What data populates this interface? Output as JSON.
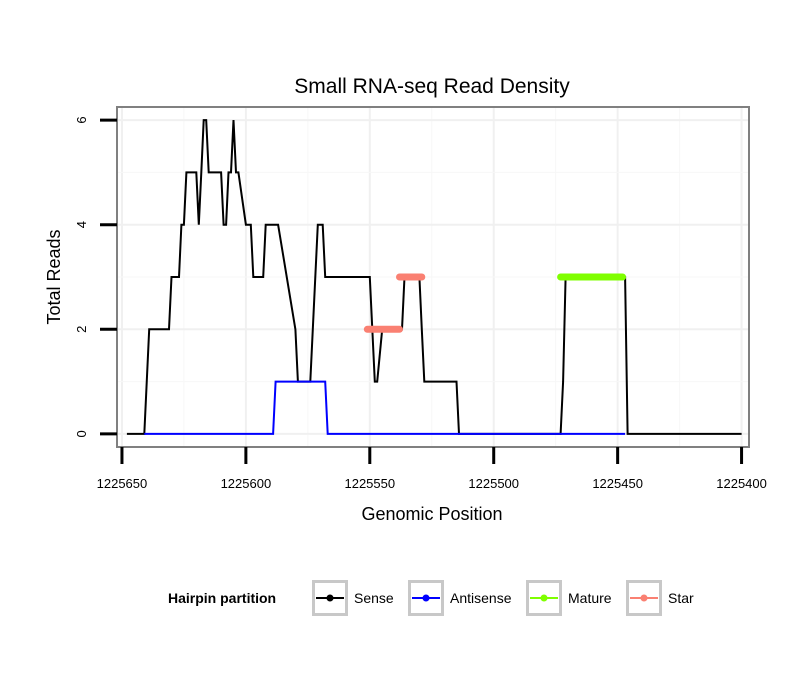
{
  "chart_data": {
    "type": "line",
    "title": "Small RNA-seq Read Density",
    "xlabel": "Genomic Position",
    "ylabel": "Total Reads",
    "x_reversed": true,
    "xlim": [
      1225652,
      1225397
    ],
    "ylim": [
      -0.25,
      6.25
    ],
    "x_ticks": [
      1225650,
      1225600,
      1225550,
      1225500,
      1225450,
      1225400
    ],
    "x_tick_labels": [
      "1225650",
      "1225600",
      "1225550",
      "1225500",
      "1225450",
      "1225400"
    ],
    "y_ticks": [
      0,
      2,
      4,
      6
    ],
    "y_tick_labels": [
      "0",
      "2",
      "4",
      "6"
    ],
    "legend": {
      "title": "Hairpin partition",
      "position": "bottom",
      "entries": [
        {
          "label": "Sense",
          "color": "#000000"
        },
        {
          "label": "Antisense",
          "color": "#0000ff"
        },
        {
          "label": "Mature",
          "color": "#7fff00"
        },
        {
          "label": "Star",
          "color": "#fa8072"
        }
      ]
    },
    "series": [
      {
        "name": "Sense",
        "color": "#000000",
        "x": [
          1225648,
          1225641,
          1225639,
          1225631,
          1225630,
          1225627,
          1225626,
          1225625,
          1225624,
          1225620,
          1225619,
          1225618,
          1225617,
          1225616,
          1225615,
          1225614,
          1225613,
          1225612,
          1225610,
          1225609,
          1225608,
          1225607,
          1225606,
          1225605,
          1225604,
          1225603,
          1225600,
          1225599,
          1225598,
          1225597,
          1225596,
          1225593,
          1225592,
          1225589,
          1225588,
          1225587,
          1225580,
          1225579,
          1225577,
          1225576,
          1225574,
          1225571,
          1225570,
          1225569,
          1225568,
          1225563,
          1225562,
          1225560,
          1225559,
          1225557,
          1225551,
          1225550,
          1225549,
          1225548,
          1225547,
          1225545,
          1225538,
          1225537,
          1225536,
          1225535,
          1225530,
          1225529,
          1225528,
          1225515,
          1225514,
          1225473,
          1225472,
          1225471,
          1225447,
          1225446,
          1225400
        ],
        "y": [
          0,
          0,
          2,
          2,
          3,
          3,
          4,
          4,
          5,
          5,
          4,
          5,
          6,
          6,
          5,
          5,
          5,
          5,
          5,
          4,
          4,
          5,
          5,
          6,
          5,
          5,
          4,
          4,
          4,
          3,
          3,
          3,
          4,
          4,
          4,
          4,
          2,
          1,
          1,
          1,
          1,
          4,
          4,
          4,
          3,
          3,
          3,
          3,
          3,
          3,
          3,
          3,
          2,
          1,
          1,
          2,
          2,
          2,
          3,
          3,
          3,
          2,
          1,
          1,
          0,
          0,
          1,
          3,
          3,
          0,
          0
        ]
      },
      {
        "name": "Antisense",
        "color": "#0000ff",
        "x": [
          1225641,
          1225589,
          1225588,
          1225568,
          1225567,
          1225447
        ],
        "y": [
          0,
          0,
          1,
          1,
          0,
          0
        ]
      },
      {
        "name": "Mature",
        "color": "#7fff00",
        "x": [
          1225473,
          1225448
        ],
        "y": [
          3,
          3
        ]
      },
      {
        "name": "Star",
        "color": "#fa8072",
        "x": [
          1225551,
          1225538
        ],
        "y": [
          2,
          2
        ]
      },
      {
        "name": "Star",
        "color": "#fa8072",
        "x": [
          1225538,
          1225529
        ],
        "y": [
          3,
          3
        ]
      }
    ]
  }
}
